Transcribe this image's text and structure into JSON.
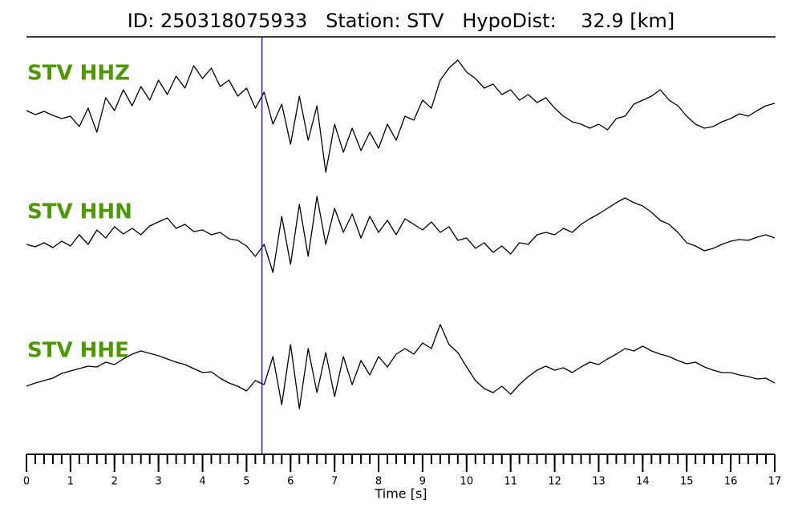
{
  "chart_data": {
    "type": "line",
    "title": "ID: 250318075933   Station: STV   HypoDist:    32.9 [km]",
    "xlabel": "Time [s]",
    "label_color": "#4c9a00",
    "pick_x": 5.35,
    "pick_color": "#2222cc",
    "xlim": [
      0,
      17
    ],
    "xticks": [
      0,
      1,
      2,
      3,
      4,
      5,
      6,
      7,
      8,
      9,
      10,
      11,
      12,
      13,
      14,
      15,
      16,
      17
    ],
    "xminorticks": [
      0,
      0.2,
      0.4,
      0.6,
      0.8,
      1,
      1.2,
      1.4,
      1.6,
      1.8,
      2,
      2.2,
      2.4,
      2.6,
      2.8,
      3,
      3.2,
      3.4,
      3.6,
      3.8,
      4,
      4.2,
      4.4,
      4.6,
      4.8,
      5,
      5.2,
      5.4,
      5.6,
      5.8,
      6,
      6.2,
      6.4,
      6.6,
      6.8,
      7,
      7.2,
      7.4,
      7.6,
      7.8,
      8,
      8.2,
      8.4,
      8.6,
      8.8,
      9,
      9.2,
      9.4,
      9.6,
      9.8,
      10,
      10.2,
      10.4,
      10.6,
      10.8,
      11,
      11.2,
      11.4,
      11.6,
      11.8,
      12,
      12.2,
      12.4,
      12.6,
      12.8,
      13,
      13.2,
      13.4,
      13.6,
      13.8,
      14,
      14.2,
      14.4,
      14.6,
      14.8,
      15,
      15.2,
      15.4,
      15.6,
      15.8,
      16,
      16.2,
      16.4,
      16.6,
      16.8,
      17
    ],
    "x": [
      0,
      0.2,
      0.4,
      0.6,
      0.8,
      1,
      1.2,
      1.4,
      1.6,
      1.8,
      2,
      2.2,
      2.4,
      2.6,
      2.8,
      3,
      3.2,
      3.4,
      3.6,
      3.8,
      4,
      4.2,
      4.4,
      4.6,
      4.8,
      5,
      5.2,
      5.4,
      5.6,
      5.8,
      6,
      6.2,
      6.4,
      6.6,
      6.8,
      7,
      7.2,
      7.4,
      7.6,
      7.8,
      8,
      8.2,
      8.4,
      8.6,
      8.8,
      9,
      9.2,
      9.4,
      9.6,
      9.8,
      10,
      10.2,
      10.4,
      10.6,
      10.8,
      11,
      11.2,
      11.4,
      11.6,
      11.8,
      12,
      12.2,
      12.4,
      12.6,
      12.8,
      13,
      13.2,
      13.4,
      13.6,
      13.8,
      14,
      14.2,
      14.4,
      14.6,
      14.8,
      15,
      15.2,
      15.4,
      15.6,
      15.8,
      16,
      16.2,
      16.4,
      16.6,
      16.8,
      17
    ],
    "series": [
      {
        "name": "STV HHZ",
        "color": "#000000",
        "values": [
          0.2,
          -0.3,
          0.1,
          -0.4,
          -0.8,
          -0.5,
          -1.8,
          0.5,
          -2.5,
          1.8,
          0.2,
          2.8,
          0.8,
          3.2,
          1.5,
          4.0,
          2.2,
          4.5,
          3.0,
          5.8,
          4.2,
          5.5,
          3.2,
          4.0,
          2.0,
          3.0,
          0.5,
          2.5,
          -1.5,
          1.0,
          -4.0,
          2.0,
          -3.5,
          0.8,
          -7.5,
          -1.5,
          -5.0,
          -2.0,
          -4.8,
          -2.5,
          -4.5,
          -1.5,
          -3.5,
          -0.5,
          -1.0,
          1.5,
          0.5,
          4.0,
          5.5,
          6.5,
          5.0,
          4.2,
          3.0,
          3.5,
          2.2,
          2.8,
          1.5,
          2.2,
          1.2,
          1.8,
          0.5,
          -0.5,
          -1.2,
          -1.5,
          -2.0,
          -1.5,
          -2.2,
          -0.8,
          -0.5,
          1.0,
          1.5,
          2.0,
          2.8,
          1.5,
          0.8,
          -0.5,
          -1.5,
          -2.0,
          -1.8,
          -1.2,
          -0.8,
          -0.2,
          -0.5,
          0.2,
          0.8,
          1.1
        ]
      },
      {
        "name": "STV HHN",
        "color": "#000000",
        "values": [
          -1.0,
          -1.3,
          -0.8,
          -1.4,
          -0.6,
          -1.2,
          0.2,
          -1.0,
          0.8,
          -0.2,
          1.2,
          0.3,
          1.0,
          0.2,
          1.3,
          1.8,
          2.3,
          1.0,
          1.5,
          0.6,
          0.8,
          0.2,
          0.5,
          -0.3,
          -0.5,
          -1.2,
          -2.5,
          -1.0,
          -4.5,
          2.5,
          -3.5,
          4.0,
          -2.5,
          5.0,
          -1.0,
          3.5,
          0.5,
          2.8,
          -0.2,
          2.5,
          0.5,
          2.0,
          0.2,
          2.2,
          1.5,
          0.8,
          1.8,
          0.5,
          1.2,
          -0.5,
          -0.2,
          -1.5,
          -0.8,
          -2.0,
          -1.2,
          -2.2,
          -0.8,
          -1.0,
          0.2,
          0.5,
          0.2,
          1.0,
          0.5,
          1.5,
          2.2,
          2.8,
          3.5,
          4.2,
          4.8,
          4.2,
          3.8,
          3.0,
          2.0,
          1.5,
          0.5,
          -0.8,
          -1.2,
          -1.8,
          -1.5,
          -1.0,
          -0.6,
          -0.4,
          -0.5,
          -0.1,
          0.2,
          -0.2
        ]
      },
      {
        "name": "STV HHE",
        "color": "#000000",
        "values": [
          -2.2,
          -1.8,
          -1.5,
          -1.2,
          -0.6,
          -0.3,
          0.0,
          0.3,
          0.2,
          0.8,
          0.5,
          1.2,
          1.8,
          2.2,
          1.9,
          1.6,
          1.2,
          0.8,
          0.5,
          0.0,
          -0.5,
          -0.4,
          -1.2,
          -1.8,
          -2.2,
          -2.8,
          -1.5,
          -2.0,
          1.5,
          -4.5,
          3.0,
          -5.0,
          2.5,
          -3.0,
          2.0,
          -3.5,
          1.5,
          -2.0,
          1.0,
          -0.8,
          1.5,
          0.2,
          1.8,
          2.5,
          1.8,
          3.2,
          2.5,
          5.5,
          3.0,
          2.0,
          0.2,
          -1.5,
          -2.5,
          -3.0,
          -2.2,
          -3.2,
          -2.0,
          -1.0,
          -0.2,
          0.3,
          -0.2,
          0.1,
          -0.5,
          0.2,
          0.8,
          0.5,
          1.2,
          1.8,
          2.5,
          2.2,
          2.8,
          2.2,
          1.8,
          1.5,
          1.0,
          0.6,
          0.8,
          0.2,
          -0.2,
          -0.5,
          -0.5,
          -0.8,
          -1.0,
          -1.3,
          -1.2,
          -1.8
        ]
      }
    ]
  }
}
